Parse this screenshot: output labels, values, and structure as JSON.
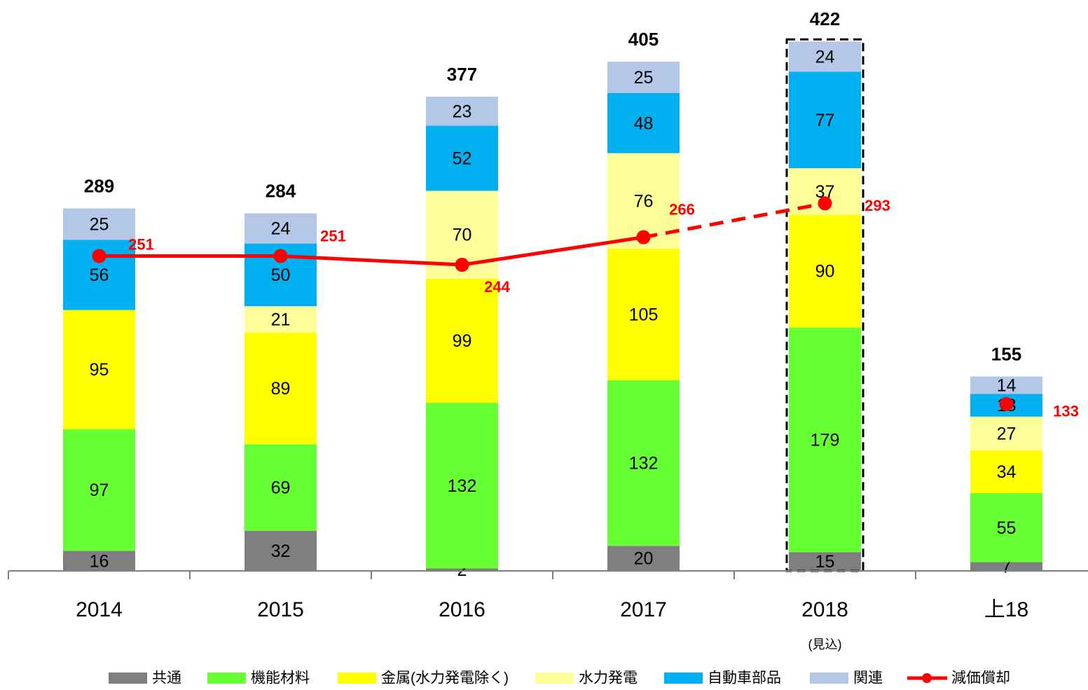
{
  "chart_data": {
    "type": "stacked_bar_line",
    "categories": [
      "2014",
      "2015",
      "2016",
      "2017",
      "2018",
      "上18"
    ],
    "category_notes": [
      null,
      null,
      null,
      null,
      "(見込)",
      null
    ],
    "ylim": [
      0,
      435
    ],
    "highlight_index": 4,
    "series": [
      {
        "name": "共通",
        "color": "#7f7f7f",
        "values": [
          16,
          32,
          2,
          20,
          15,
          7
        ]
      },
      {
        "name": "機能材料",
        "color": "#66ff33",
        "values": [
          97,
          69,
          132,
          132,
          179,
          55
        ]
      },
      {
        "name": "金属(水力発電除く)",
        "color": "#ffff00",
        "values": [
          95,
          89,
          99,
          105,
          90,
          34
        ]
      },
      {
        "name": "水力発電",
        "color": "#ffff99",
        "values": [
          null,
          21,
          70,
          76,
          37,
          27
        ]
      },
      {
        "name": "自動車部品",
        "color": "#00b0f0",
        "values": [
          56,
          50,
          52,
          48,
          77,
          18
        ]
      },
      {
        "name": "関連",
        "color": "#b4c7e7",
        "values": [
          25,
          24,
          23,
          25,
          24,
          14
        ]
      }
    ],
    "totals": [
      289,
      284,
      377,
      405,
      422,
      155
    ],
    "line": {
      "name": "減価償却",
      "color": "#ff0000",
      "values": [
        251,
        251,
        244,
        266,
        293,
        133
      ],
      "dashed_from": 3,
      "connected_until": 4
    }
  }
}
